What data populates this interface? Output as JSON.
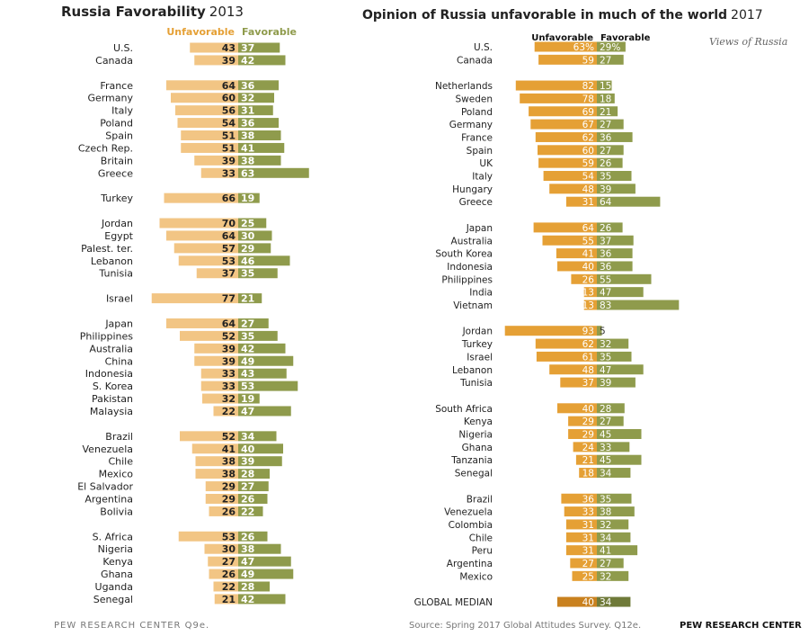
{
  "page": {
    "left_title": "Russia Favorability",
    "left_year": "2013",
    "right_title": "Opinion of Russia unfavorable in much of the world",
    "right_year": "2017",
    "right_note": "Views of Russia",
    "footer_left": "PEW RESEARCH CENTER Q9e.",
    "footer_mid": "Source: Spring 2017 Global Attitudes Survey. Q12e.",
    "footer_right": "PEW RESEARCH CENTER"
  },
  "colors": {
    "unfav_2013": "#f2c584",
    "fav_2013": "#8f9b4c",
    "unfav_2017": "#e5a035",
    "fav_2017": "#8f9b4c",
    "median_unfav": "#c9811f",
    "median_fav": "#6f7a39",
    "header_unfav_2013": "#e5a035",
    "header_fav_2013": "#8f9b4c"
  },
  "chart_data": [
    {
      "type": "bar",
      "orientation": "diverging-horizontal",
      "title": "Russia Favorability",
      "year": "2013",
      "series_names": [
        "Unfavorable",
        "Favorable"
      ],
      "groups": [
        {
          "rows": [
            {
              "label": "U.S.",
              "unfav": 43,
              "fav": 37
            },
            {
              "label": "Canada",
              "unfav": 39,
              "fav": 42
            }
          ]
        },
        {
          "rows": [
            {
              "label": "France",
              "unfav": 64,
              "fav": 36
            },
            {
              "label": "Germany",
              "unfav": 60,
              "fav": 32
            },
            {
              "label": "Italy",
              "unfav": 56,
              "fav": 31
            },
            {
              "label": "Poland",
              "unfav": 54,
              "fav": 36
            },
            {
              "label": "Spain",
              "unfav": 51,
              "fav": 38
            },
            {
              "label": "Czech Rep.",
              "unfav": 51,
              "fav": 41
            },
            {
              "label": "Britain",
              "unfav": 39,
              "fav": 38
            },
            {
              "label": "Greece",
              "unfav": 33,
              "fav": 63
            }
          ]
        },
        {
          "rows": [
            {
              "label": "Turkey",
              "unfav": 66,
              "fav": 19
            }
          ]
        },
        {
          "rows": [
            {
              "label": "Jordan",
              "unfav": 70,
              "fav": 25
            },
            {
              "label": "Egypt",
              "unfav": 64,
              "fav": 30
            },
            {
              "label": "Palest. ter.",
              "unfav": 57,
              "fav": 29
            },
            {
              "label": "Lebanon",
              "unfav": 53,
              "fav": 46
            },
            {
              "label": "Tunisia",
              "unfav": 37,
              "fav": 35
            }
          ]
        },
        {
          "rows": [
            {
              "label": "Israel",
              "unfav": 77,
              "fav": 21
            }
          ]
        },
        {
          "rows": [
            {
              "label": "Japan",
              "unfav": 64,
              "fav": 27
            },
            {
              "label": "Philippines",
              "unfav": 52,
              "fav": 35
            },
            {
              "label": "Australia",
              "unfav": 39,
              "fav": 42
            },
            {
              "label": "China",
              "unfav": 39,
              "fav": 49
            },
            {
              "label": "Indonesia",
              "unfav": 33,
              "fav": 43
            },
            {
              "label": "S. Korea",
              "unfav": 33,
              "fav": 53
            },
            {
              "label": "Pakistan",
              "unfav": 32,
              "fav": 19
            },
            {
              "label": "Malaysia",
              "unfav": 22,
              "fav": 47
            }
          ]
        },
        {
          "rows": [
            {
              "label": "Brazil",
              "unfav": 52,
              "fav": 34
            },
            {
              "label": "Venezuela",
              "unfav": 41,
              "fav": 40
            },
            {
              "label": "Chile",
              "unfav": 38,
              "fav": 39
            },
            {
              "label": "Mexico",
              "unfav": 38,
              "fav": 28
            },
            {
              "label": "El Salvador",
              "unfav": 29,
              "fav": 27
            },
            {
              "label": "Argentina",
              "unfav": 29,
              "fav": 26
            },
            {
              "label": "Bolivia",
              "unfav": 26,
              "fav": 22
            }
          ]
        },
        {
          "rows": [
            {
              "label": "S. Africa",
              "unfav": 53,
              "fav": 26
            },
            {
              "label": "Nigeria",
              "unfav": 30,
              "fav": 38
            },
            {
              "label": "Kenya",
              "unfav": 27,
              "fav": 47
            },
            {
              "label": "Ghana",
              "unfav": 26,
              "fav": 49
            },
            {
              "label": "Uganda",
              "unfav": 22,
              "fav": 28
            },
            {
              "label": "Senegal",
              "unfav": 21,
              "fav": 42
            }
          ]
        }
      ]
    },
    {
      "type": "bar",
      "orientation": "diverging-horizontal",
      "title": "Opinion of Russia unfavorable in much of the world",
      "year": "2017",
      "series_names": [
        "Unfavorable",
        "Favorable"
      ],
      "groups": [
        {
          "rows": [
            {
              "label": "U.S.",
              "unfav": 63,
              "fav": 29,
              "unfav_text": "63%",
              "fav_text": "29%"
            },
            {
              "label": "Canada",
              "unfav": 59,
              "fav": 27
            }
          ]
        },
        {
          "rows": [
            {
              "label": "Netherlands",
              "unfav": 82,
              "fav": 15
            },
            {
              "label": "Sweden",
              "unfav": 78,
              "fav": 18
            },
            {
              "label": "Poland",
              "unfav": 69,
              "fav": 21
            },
            {
              "label": "Germany",
              "unfav": 67,
              "fav": 27
            },
            {
              "label": "France",
              "unfav": 62,
              "fav": 36
            },
            {
              "label": "Spain",
              "unfav": 60,
              "fav": 27
            },
            {
              "label": "UK",
              "unfav": 59,
              "fav": 26
            },
            {
              "label": "Italy",
              "unfav": 54,
              "fav": 35
            },
            {
              "label": "Hungary",
              "unfav": 48,
              "fav": 39
            },
            {
              "label": "Greece",
              "unfav": 31,
              "fav": 64
            }
          ]
        },
        {
          "rows": [
            {
              "label": "Japan",
              "unfav": 64,
              "fav": 26
            },
            {
              "label": "Australia",
              "unfav": 55,
              "fav": 37
            },
            {
              "label": "South Korea",
              "unfav": 41,
              "fav": 36
            },
            {
              "label": "Indonesia",
              "unfav": 40,
              "fav": 36
            },
            {
              "label": "Philippines",
              "unfav": 26,
              "fav": 55
            },
            {
              "label": "India",
              "unfav": 13,
              "fav": 47
            },
            {
              "label": "Vietnam",
              "unfav": 13,
              "fav": 83
            }
          ]
        },
        {
          "rows": [
            {
              "label": "Jordan",
              "unfav": 93,
              "fav": 5
            },
            {
              "label": "Turkey",
              "unfav": 62,
              "fav": 32
            },
            {
              "label": "Israel",
              "unfav": 61,
              "fav": 35
            },
            {
              "label": "Lebanon",
              "unfav": 48,
              "fav": 47
            },
            {
              "label": "Tunisia",
              "unfav": 37,
              "fav": 39
            }
          ]
        },
        {
          "rows": [
            {
              "label": "South Africa",
              "unfav": 40,
              "fav": 28
            },
            {
              "label": "Kenya",
              "unfav": 29,
              "fav": 27
            },
            {
              "label": "Nigeria",
              "unfav": 29,
              "fav": 45
            },
            {
              "label": "Ghana",
              "unfav": 24,
              "fav": 33
            },
            {
              "label": "Tanzania",
              "unfav": 21,
              "fav": 45
            },
            {
              "label": "Senegal",
              "unfav": 18,
              "fav": 34
            }
          ]
        },
        {
          "rows": [
            {
              "label": "Brazil",
              "unfav": 36,
              "fav": 35
            },
            {
              "label": "Venezuela",
              "unfav": 33,
              "fav": 38
            },
            {
              "label": "Colombia",
              "unfav": 31,
              "fav": 32
            },
            {
              "label": "Chile",
              "unfav": 31,
              "fav": 34
            },
            {
              "label": "Peru",
              "unfav": 31,
              "fav": 41
            },
            {
              "label": "Argentina",
              "unfav": 27,
              "fav": 27
            },
            {
              "label": "Mexico",
              "unfav": 25,
              "fav": 32
            }
          ]
        },
        {
          "rows": [
            {
              "label": "GLOBAL MEDIAN",
              "unfav": 40,
              "fav": 34,
              "median": true
            }
          ]
        }
      ]
    }
  ]
}
